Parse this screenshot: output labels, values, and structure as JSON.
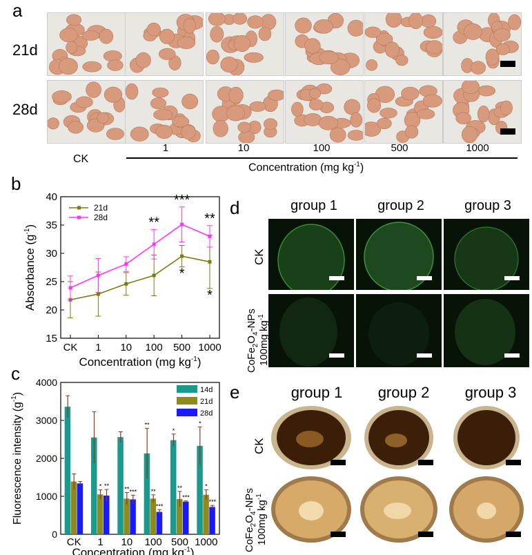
{
  "panel_a": {
    "letter": "a",
    "rows": [
      "21d",
      "28d"
    ],
    "ck_label": "CK",
    "concentrations": [
      "1",
      "10",
      "100",
      "500",
      "1000"
    ],
    "axis_label": "Concentration (mg kg",
    "axis_label_sup": "-1",
    "axis_label_end": ")"
  },
  "panel_d": {
    "letter": "d",
    "groups": [
      "group 1",
      "group 2",
      "group 3"
    ],
    "row_ck": "CK",
    "row_np": "CoFe",
    "row_np_sub1": "2",
    "row_np_mid": "O",
    "row_np_sub2": "4",
    "row_np_end": "-NPs",
    "row_np_dose": "100mg kg",
    "row_np_dose_sup": "-1"
  },
  "panel_e": {
    "letter": "e",
    "groups": [
      "group 1",
      "group 2",
      "group 3"
    ],
    "row_ck": "CK",
    "row_np": "CoFe",
    "row_np_sub1": "2",
    "row_np_mid": "O",
    "row_np_sub2": "4",
    "row_np_end": "-NPs",
    "row_np_dose": "100mg kg",
    "row_np_dose_sup": "-1"
  },
  "colors": {
    "d21": "#7b7a12",
    "d28": "#ff33ff",
    "teal": "#1a9a8e",
    "olive": "#8e8a1c",
    "blue": "#1a1aff",
    "err_brown": "#8b3a1a"
  },
  "chart_data": [
    {
      "id": "b",
      "letter": "b",
      "type": "line",
      "categories": [
        "CK",
        "1",
        "10",
        "100",
        "500",
        "1000"
      ],
      "ylabel": "Absorbance (g",
      "ylabel_sup": "-1",
      "ylabel_end": ")",
      "xlabel": "Concentration (mg kg",
      "xlabel_sup": "-1",
      "xlabel_end": ")",
      "ylim": [
        15,
        40
      ],
      "yticks": [
        15,
        20,
        25,
        30,
        35,
        40
      ],
      "legend": "top-left",
      "series": [
        {
          "name": "21d",
          "values": [
            21.8,
            22.8,
            24.6,
            26.1,
            29.5,
            28.5
          ],
          "err": [
            3.2,
            3.9,
            2.0,
            3.6,
            1.9,
            4.7
          ],
          "sig": [
            "",
            "",
            "",
            "",
            "*",
            "*"
          ]
        },
        {
          "name": "28d",
          "values": [
            23.9,
            26.1,
            28.1,
            31.6,
            35.1,
            33.0
          ],
          "err": [
            2.1,
            3.0,
            1.3,
            2.6,
            3.1,
            1.9
          ],
          "sig": [
            "",
            "",
            "",
            "**",
            "***",
            "**"
          ]
        }
      ]
    },
    {
      "id": "c",
      "letter": "c",
      "type": "bar",
      "categories": [
        "CK",
        "1",
        "10",
        "100",
        "500",
        "1000"
      ],
      "ylabel": "Fluorescence intensity (g",
      "ylabel_sup": "-1",
      "ylabel_end": ")",
      "xlabel": "Concentration (mg kg",
      "xlabel_sup": "-1",
      "xlabel_end": ")",
      "ylim": [
        0,
        4000
      ],
      "yticks": [
        0,
        1000,
        2000,
        3000,
        4000
      ],
      "legend": "top-right",
      "series": [
        {
          "name": "14d",
          "values": [
            3360,
            2550,
            2560,
            2130,
            2480,
            2330
          ],
          "err": [
            290,
            680,
            140,
            660,
            160,
            500
          ],
          "sig": [
            "",
            "",
            "",
            "**",
            "*",
            "*"
          ]
        },
        {
          "name": "21d",
          "values": [
            1390,
            1050,
            940,
            940,
            930,
            1040
          ],
          "err": [
            200,
            120,
            160,
            100,
            200,
            130
          ],
          "sig": [
            "",
            "*",
            "**",
            "**",
            "**",
            "*"
          ]
        },
        {
          "name": "28d",
          "values": [
            1340,
            1020,
            920,
            590,
            860,
            720
          ],
          "err": [
            50,
            160,
            110,
            60,
            20,
            40
          ],
          "sig": [
            "",
            "**",
            "***",
            "***",
            "***",
            "***"
          ]
        }
      ]
    }
  ]
}
